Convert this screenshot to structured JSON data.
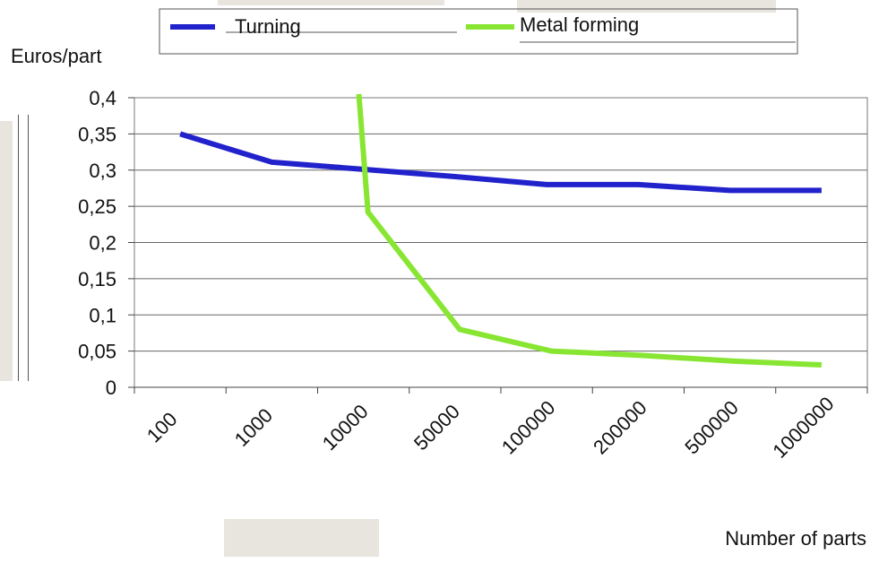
{
  "chart_data": {
    "type": "line",
    "categories": [
      "100",
      "1000",
      "10000",
      "50000",
      "100000",
      "200000",
      "500000",
      "1000000"
    ],
    "ylabel": "Euros/part",
    "xlabel": "Number of parts",
    "ylim": [
      0,
      0.4
    ],
    "yticks": [
      "0",
      "0,05",
      "0,1",
      "0,15",
      "0,2",
      "0,25",
      "0,3",
      "0,35",
      "0,4"
    ],
    "grid": true,
    "legend_position": "top",
    "series": [
      {
        "name": "Turning",
        "color": "#2222cc",
        "points": [
          [
            0,
            0.35
          ],
          [
            1,
            0.311
          ],
          [
            2,
            0.301
          ],
          [
            3,
            0.291
          ],
          [
            4,
            0.28
          ],
          [
            5,
            0.28
          ],
          [
            6,
            0.272
          ],
          [
            7,
            0.272
          ]
        ]
      },
      {
        "name": "Metal forming",
        "color": "#88e633",
        "points": [
          [
            1.95,
            0.405
          ],
          [
            2.05,
            0.242
          ],
          [
            3.05,
            0.08
          ],
          [
            4.05,
            0.05
          ],
          [
            5.05,
            0.044
          ],
          [
            6.05,
            0.036
          ],
          [
            7.0,
            0.031
          ]
        ]
      }
    ]
  }
}
